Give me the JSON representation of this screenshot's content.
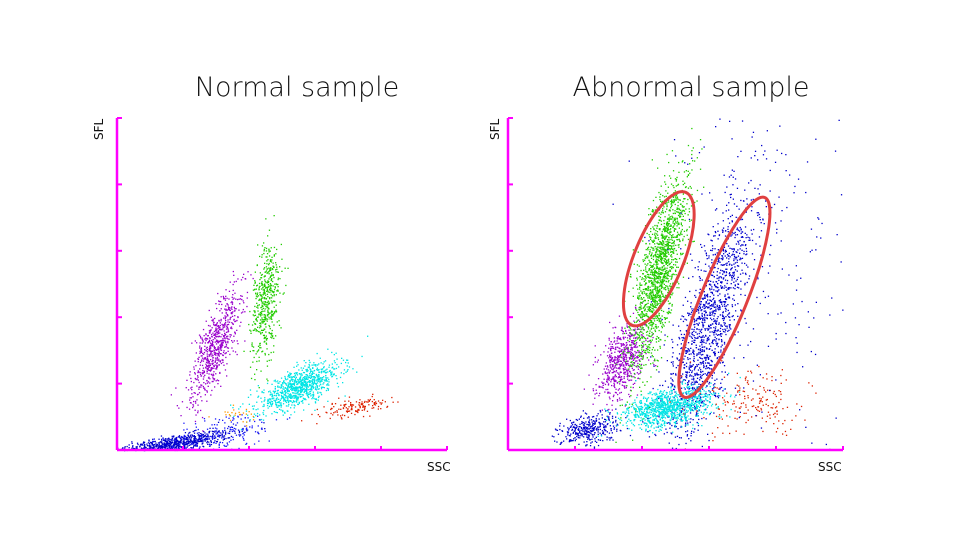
{
  "chart_data": [
    {
      "type": "scatter",
      "title": "Normal sample",
      "xlabel": "SSC",
      "ylabel": "SFL",
      "xlim": [
        0,
        5
      ],
      "ylim": [
        0,
        5
      ],
      "grid": false,
      "axis_color": "#ff00ff",
      "clusters": [
        {
          "color": "#0000cc",
          "center": [
            0.75,
            0.08
          ],
          "spread": [
            0.5,
            0.06
          ],
          "angle": 10,
          "count": 900
        },
        {
          "color": "#1a1aff",
          "center": [
            1.6,
            0.25
          ],
          "spread": [
            0.45,
            0.15
          ],
          "angle": 15,
          "count": 150
        },
        {
          "color": "#9900cc",
          "center": [
            1.5,
            1.6
          ],
          "spread": [
            0.12,
            0.45
          ],
          "angle": -20,
          "count": 700
        },
        {
          "color": "#22cc00",
          "center": [
            2.25,
            2.25
          ],
          "spread": [
            0.1,
            0.45
          ],
          "angle": -5,
          "count": 500
        },
        {
          "color": "#00e5e5",
          "center": [
            2.75,
            0.95
          ],
          "spread": [
            0.35,
            0.12
          ],
          "angle": 25,
          "count": 900
        },
        {
          "color": "#dd2200",
          "center": [
            3.6,
            0.65
          ],
          "spread": [
            0.25,
            0.06
          ],
          "angle": 10,
          "count": 140
        },
        {
          "color": "#ff9900",
          "center": [
            1.8,
            0.55
          ],
          "spread": [
            0.15,
            0.05
          ],
          "angle": 0,
          "count": 25
        }
      ]
    },
    {
      "type": "scatter",
      "title": "Abnormal sample",
      "xlabel": "SSC",
      "ylabel": "SFL",
      "xlim": [
        0,
        5
      ],
      "ylim": [
        0,
        5
      ],
      "grid": false,
      "axis_color": "#ff00ff",
      "clusters": [
        {
          "color": "#0000cc",
          "center": [
            1.2,
            0.32
          ],
          "spread": [
            0.22,
            0.12
          ],
          "angle": 15,
          "count": 350
        },
        {
          "color": "#9900cc",
          "center": [
            1.7,
            1.35
          ],
          "spread": [
            0.15,
            0.3
          ],
          "angle": -20,
          "count": 600
        },
        {
          "color": "#22cc00",
          "center": [
            2.25,
            2.7
          ],
          "spread": [
            0.14,
            0.75
          ],
          "angle": -12,
          "count": 1600
        },
        {
          "color": "#0000cc",
          "center": [
            3.0,
            1.9
          ],
          "spread": [
            0.2,
            1.0
          ],
          "angle": -16,
          "count": 1400
        },
        {
          "color": "#00e5e5",
          "center": [
            2.4,
            0.65
          ],
          "spread": [
            0.35,
            0.13
          ],
          "angle": 12,
          "count": 1000
        },
        {
          "color": "#dd2200",
          "center": [
            3.7,
            0.7
          ],
          "spread": [
            0.4,
            0.25
          ],
          "angle": 10,
          "count": 180
        },
        {
          "color": "#0000cc",
          "center": [
            3.8,
            2.5
          ],
          "spread": [
            0.9,
            1.5
          ],
          "angle": 0,
          "count": 220
        }
      ],
      "annotations": [
        {
          "shape": "ellipse",
          "color": "#e04040",
          "center": [
            2.25,
            2.88
          ],
          "radii": [
            0.37,
            1.08
          ],
          "angle": 22
        },
        {
          "shape": "ellipse",
          "color": "#e04040",
          "center": [
            3.23,
            2.3
          ],
          "radii": [
            0.34,
            1.62
          ],
          "angle": 22
        }
      ]
    }
  ]
}
